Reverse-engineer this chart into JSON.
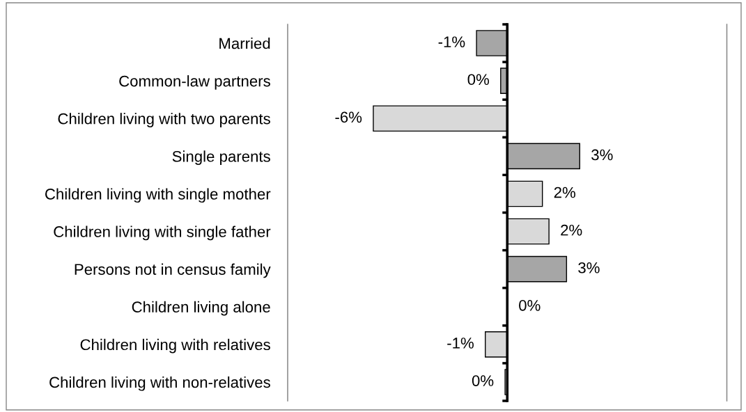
{
  "chart_data": {
    "type": "bar",
    "orientation": "horizontal",
    "categories": [
      "Married",
      "Common-law partners",
      "Children living with two parents",
      "Single parents",
      "Children living with single mother",
      "Children living with single father",
      "Persons not in census family",
      "Children living alone",
      "Children living with relatives",
      "Children living with non-relatives"
    ],
    "values": [
      -1.4,
      -0.3,
      -6.1,
      3.3,
      1.6,
      1.9,
      2.7,
      0,
      -1.0,
      -0.1
    ],
    "colors": [
      "#a6a6a6",
      "#a6a6a6",
      "#d9d9d9",
      "#a6a6a6",
      "#d9d9d9",
      "#d9d9d9",
      "#a6a6a6",
      "#d9d9d9",
      "#d9d9d9",
      "#d9d9d9"
    ],
    "value_labels": [
      "-1%",
      "0%",
      "-6%",
      "3%",
      "2%",
      "2%",
      "3%",
      "0%",
      "-1%",
      "0%"
    ],
    "xlim": [
      -10,
      10
    ],
    "tick_labels": "y"
  }
}
